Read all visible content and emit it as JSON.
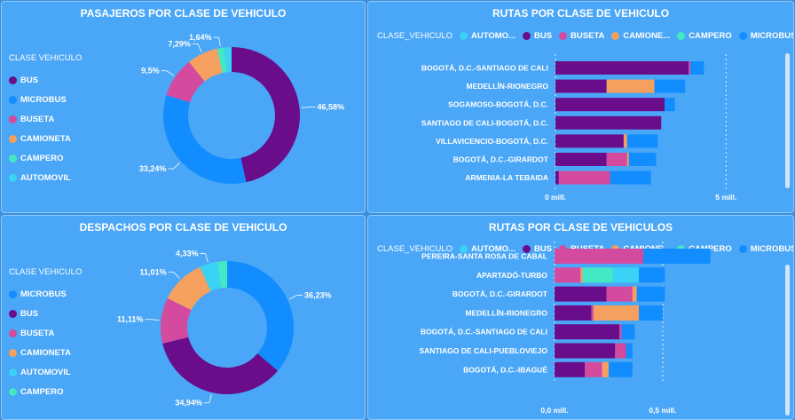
{
  "colors": {
    "BUS": "#6a0d8a",
    "MICROBUS": "#118dff",
    "BUSETA": "#d44a9e",
    "CAMIONETA": "#f6a05f",
    "CAMPERO": "#43e8c5",
    "AUTOMOVIL": "#3ad3f5"
  },
  "panels": {
    "p1": {
      "title": "PASAJEROS POR CLASE DE VEHICULO",
      "legend_title": "CLASE VEHICULO"
    },
    "p2": {
      "title": "RUTAS POR CLASE DE VEHICULO",
      "legend_title": "CLASE_VEHICULO"
    },
    "p3": {
      "title": "DESPACHOS POR CLASE DE VEHICULO",
      "legend_title": "CLASE VEHICULO"
    },
    "p4": {
      "title": "RUTAS POR CLASE DE VEHICULOS",
      "legend_title": "CLASE_VEHICULO"
    }
  },
  "chart_data": [
    {
      "type": "pie",
      "title": "PASAJEROS POR CLASE DE VEHICULO",
      "legend": [
        "BUS",
        "MICROBUS",
        "BUSETA",
        "CAMIONETA",
        "CAMPERO",
        "AUTOMOVIL"
      ],
      "slices": [
        {
          "name": "BUS",
          "value": 46.58,
          "label": "46,58%"
        },
        {
          "name": "MICROBUS",
          "value": 33.24,
          "label": "33,24%"
        },
        {
          "name": "BUSETA",
          "value": 9.5,
          "label": "9,5%"
        },
        {
          "name": "CAMIONETA",
          "value": 7.29,
          "label": "7,29%"
        },
        {
          "name": "CAMPERO",
          "value": 1.64,
          "label": "1,64%"
        },
        {
          "name": "AUTOMOVIL",
          "value": 1.75,
          "label": ""
        }
      ]
    },
    {
      "type": "bar",
      "orientation": "horizontal",
      "stacked": true,
      "title": "RUTAS POR CLASE DE VEHICULO",
      "legend": [
        {
          "name": "AUTOMO...",
          "key": "AUTOMOVIL"
        },
        {
          "name": "BUS",
          "key": "BUS"
        },
        {
          "name": "BUSETA",
          "key": "BUSETA"
        },
        {
          "name": "CAMIONE...",
          "key": "CAMIONETA"
        },
        {
          "name": "CAMPERO",
          "key": "CAMPERO"
        },
        {
          "name": "MICROBUS",
          "key": "MICROBUS"
        }
      ],
      "categories": [
        "BOGOTÁ, D.C.-SANTIAGO DE CALI",
        "MEDELLÍN-RIONEGRO",
        "SOGAMOSO-BOGOTÁ, D.C.",
        "SANTIAGO DE CALI-BOGOTÁ, D.C.",
        "VILLAVICENCIO-BOGOTÁ, D.C.",
        "BOGOTÁ, D.C.-GIRARDOT",
        "ARMENIA-LA TEBAIDA"
      ],
      "series": [
        {
          "name": "AUTOMOVIL",
          "values": [
            0,
            0,
            0,
            0,
            0,
            0,
            0
          ]
        },
        {
          "name": "BUS",
          "values": [
            3.9,
            1.5,
            3.2,
            3.1,
            2.0,
            1.5,
            0.1
          ]
        },
        {
          "name": "BUSETA",
          "values": [
            0.05,
            0,
            0,
            0,
            0,
            0.6,
            1.5
          ]
        },
        {
          "name": "CAMIONETA",
          "values": [
            0,
            1.4,
            0,
            0,
            0.1,
            0.05,
            0
          ]
        },
        {
          "name": "CAMPERO",
          "values": [
            0,
            0,
            0,
            0,
            0,
            0,
            0
          ]
        },
        {
          "name": "MICROBUS",
          "values": [
            0.4,
            0.9,
            0.3,
            0,
            0.9,
            0.8,
            1.2
          ]
        }
      ],
      "xticks": [
        "0 mill.",
        "5 mill."
      ],
      "xlim": [
        0,
        6.5
      ]
    },
    {
      "type": "pie",
      "title": "DESPACHOS POR CLASE DE VEHICULO",
      "legend": [
        "MICROBUS",
        "BUS",
        "BUSETA",
        "CAMIONETA",
        "AUTOMOVIL",
        "CAMPERO"
      ],
      "slices": [
        {
          "name": "MICROBUS",
          "value": 36.23,
          "label": "36,23%"
        },
        {
          "name": "BUS",
          "value": 34.94,
          "label": "34,94%"
        },
        {
          "name": "BUSETA",
          "value": 11.11,
          "label": "11,11%"
        },
        {
          "name": "CAMIONETA",
          "value": 11.01,
          "label": "11,01%"
        },
        {
          "name": "AUTOMOVIL",
          "value": 4.33,
          "label": "4,33%"
        },
        {
          "name": "CAMPERO",
          "value": 2.38,
          "label": ""
        }
      ]
    },
    {
      "type": "bar",
      "orientation": "horizontal",
      "stacked": true,
      "title": "RUTAS POR CLASE DE VEHICULOS",
      "legend": [
        {
          "name": "AUTOMO...",
          "key": "AUTOMOVIL"
        },
        {
          "name": "BUS",
          "key": "BUS"
        },
        {
          "name": "BUSETA",
          "key": "BUSETA"
        },
        {
          "name": "CAMIONE...",
          "key": "CAMIONETA"
        },
        {
          "name": "CAMPERO",
          "key": "CAMPERO"
        },
        {
          "name": "MICROBUS",
          "key": "MICROBUS"
        }
      ],
      "categories": [
        "PEREIRA-SANTA ROSA DE CABAL",
        "APARTADÓ-TURBO",
        "BOGOTÁ, D.C.-GIRARDOT",
        "MEDELLÍN-RIONEGRO",
        "BOGOTÁ, D.C.-SANTIAGO DE CALI",
        "SANTIAGO DE CALI-PUEBLOVIEJO",
        "BOGOTÁ, D.C.-IBAGUÉ"
      ],
      "series": [
        {
          "name": "AUTOMOVIL",
          "values": [
            0,
            0.12,
            0,
            0,
            0,
            0,
            0
          ]
        },
        {
          "name": "BUS",
          "values": [
            0,
            0,
            0.24,
            0.17,
            0.3,
            0.28,
            0.14
          ]
        },
        {
          "name": "BUSETA",
          "values": [
            0.41,
            0.12,
            0.12,
            0.01,
            0.01,
            0.05,
            0.08
          ]
        },
        {
          "name": "CAMIONETA",
          "values": [
            0,
            0.01,
            0.02,
            0.21,
            0,
            0,
            0.03
          ]
        },
        {
          "name": "CAMPERO",
          "values": [
            0,
            0.14,
            0,
            0,
            0,
            0,
            0
          ]
        },
        {
          "name": "MICROBUS",
          "values": [
            0.31,
            0.12,
            0.13,
            0.11,
            0.06,
            0.03,
            0.11
          ]
        }
      ],
      "xticks": [
        "0,0 mill.",
        "0,5 mill."
      ],
      "xlim": [
        0,
        0.82
      ]
    }
  ]
}
